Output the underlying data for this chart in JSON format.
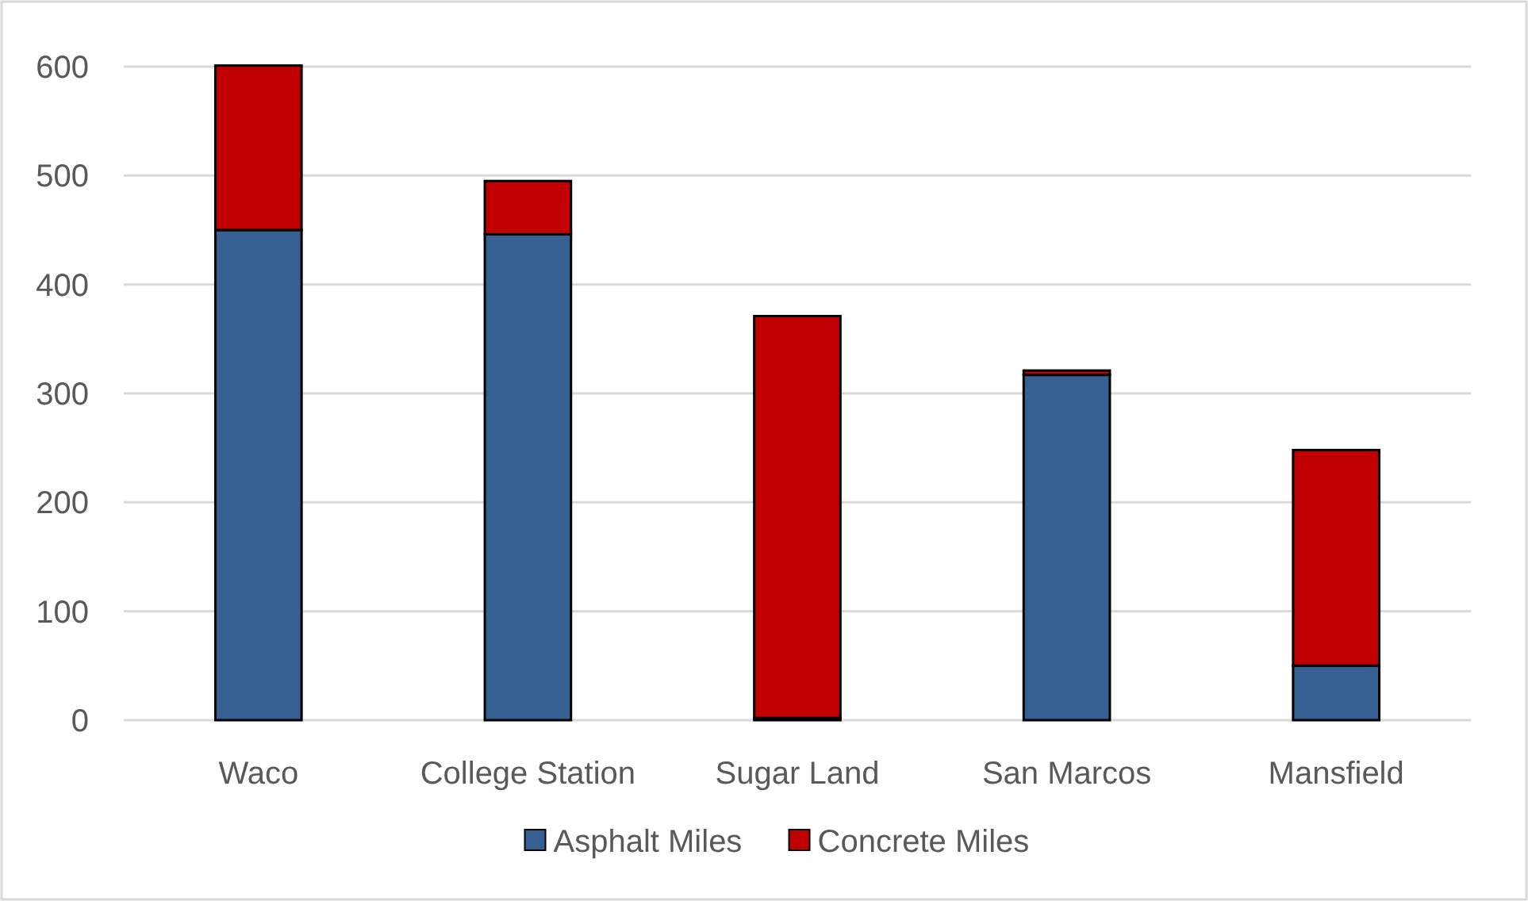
{
  "chart_data": {
    "type": "bar",
    "stacked": true,
    "categories": [
      "Waco",
      "College Station",
      "Sugar Land",
      "San Marcos",
      "Mansfield"
    ],
    "series": [
      {
        "name": "Asphalt Miles",
        "color": "#366092",
        "values": [
          450,
          446,
          2,
          317,
          50
        ]
      },
      {
        "name": "Concrete Miles",
        "color": "#c00000",
        "values": [
          151,
          49,
          369,
          4,
          198
        ]
      }
    ],
    "ylim": [
      0,
      600
    ],
    "yticks": [
      0,
      100,
      200,
      300,
      400,
      500,
      600
    ],
    "grid": "y",
    "legend": "bottom"
  }
}
